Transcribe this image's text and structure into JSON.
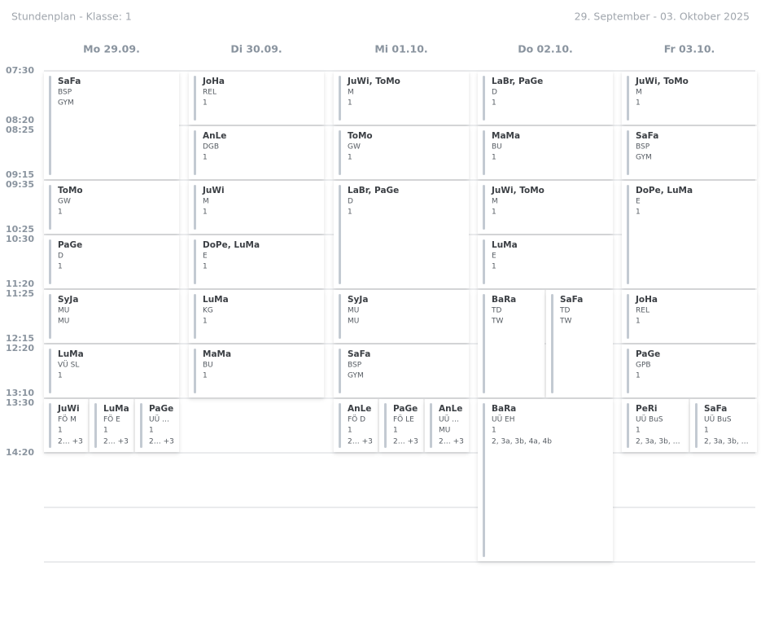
{
  "header": {
    "title": "Stundenplan - Klasse: 1",
    "range": "29. September - 03. Oktober 2025"
  },
  "times": [
    "07:30",
    "08:20",
    "08:25",
    "09:15",
    "09:35",
    "10:25",
    "10:30",
    "11:20",
    "11:25",
    "12:15",
    "12:20",
    "13:10",
    "13:30",
    "14:20"
  ],
  "days": [
    {
      "label": "Mo 29.09.",
      "lessons": [
        {
          "teacher": "SaFa",
          "subject": "BSP",
          "room": "GYM"
        },
        {
          "teacher": "ToMo",
          "subject": "GW",
          "room": "1"
        },
        {
          "teacher": "PaGe",
          "subject": "D",
          "room": "1"
        },
        {
          "teacher": "SyJa",
          "subject": "MU",
          "room": "MU"
        },
        {
          "teacher": "LuMa",
          "subject": "VÜ SL",
          "room": "1"
        },
        {
          "teacher": "JuWi",
          "subject": "FÖ M",
          "room": "1",
          "classes": "2… +3"
        },
        {
          "teacher": "LuMa",
          "subject": "FÖ E",
          "room": "1",
          "classes": "2… +3"
        },
        {
          "teacher": "PaGe",
          "subject": "UÜ …",
          "room": "1",
          "classes": "2… +3"
        }
      ]
    },
    {
      "label": "Di 30.09.",
      "lessons": [
        {
          "teacher": "JoHa",
          "subject": "REL",
          "room": "1"
        },
        {
          "teacher": "AnLe",
          "subject": "DGB",
          "room": "1"
        },
        {
          "teacher": "JuWi",
          "subject": "M",
          "room": "1"
        },
        {
          "teacher": "DoPe, LuMa",
          "subject": "E",
          "room": "1"
        },
        {
          "teacher": "LuMa",
          "subject": "KG",
          "room": "1"
        },
        {
          "teacher": "MaMa",
          "subject": "BU",
          "room": "1"
        }
      ]
    },
    {
      "label": "Mi 01.10.",
      "lessons": [
        {
          "teacher": "JuWi, ToMo",
          "subject": "M",
          "room": "1"
        },
        {
          "teacher": "ToMo",
          "subject": "GW",
          "room": "1"
        },
        {
          "teacher": "LaBr, PaGe",
          "subject": "D",
          "room": "1"
        },
        {
          "teacher": "SyJa",
          "subject": "MU",
          "room": "MU"
        },
        {
          "teacher": "SaFa",
          "subject": "BSP",
          "room": "GYM"
        },
        {
          "teacher": "AnLe",
          "subject": "FÖ D",
          "room": "1",
          "classes": "2… +3"
        },
        {
          "teacher": "PaGe",
          "subject": "FÖ LE",
          "room": "1",
          "classes": "2… +3"
        },
        {
          "teacher": "AnLe",
          "subject": "UÜ …",
          "room": "MU",
          "classes": "2… +3"
        }
      ]
    },
    {
      "label": "Do 02.10.",
      "lessons": [
        {
          "teacher": "LaBr, PaGe",
          "subject": "D",
          "room": "1"
        },
        {
          "teacher": "MaMa",
          "subject": "BU",
          "room": "1"
        },
        {
          "teacher": "JuWi, ToMo",
          "subject": "M",
          "room": "1"
        },
        {
          "teacher": "LuMa",
          "subject": "E",
          "room": "1"
        },
        {
          "teacher": "BaRa",
          "subject": "TD",
          "room": "TW"
        },
        {
          "teacher": "SaFa",
          "subject": "TD",
          "room": "TW"
        },
        {
          "teacher": "BaRa",
          "subject": "UÜ EH",
          "room": "1",
          "classes": "2, 3a, 3b, 4a, 4b"
        }
      ]
    },
    {
      "label": "Fr 03.10.",
      "lessons": [
        {
          "teacher": "JuWi, ToMo",
          "subject": "M",
          "room": "1"
        },
        {
          "teacher": "SaFa",
          "subject": "BSP",
          "room": "GYM"
        },
        {
          "teacher": "DoPe, LuMa",
          "subject": "E",
          "room": "1"
        },
        {
          "teacher": "JoHa",
          "subject": "REL",
          "room": "1"
        },
        {
          "teacher": "PaGe",
          "subject": "GPB",
          "room": "1"
        },
        {
          "teacher": "PeRi",
          "subject": "UÜ BuS",
          "room": "1",
          "classes": "2, 3a, 3b, …"
        },
        {
          "teacher": "SaFa",
          "subject": "UÜ BuS",
          "room": "1",
          "classes": "2, 3a, 3b, …"
        }
      ]
    }
  ]
}
